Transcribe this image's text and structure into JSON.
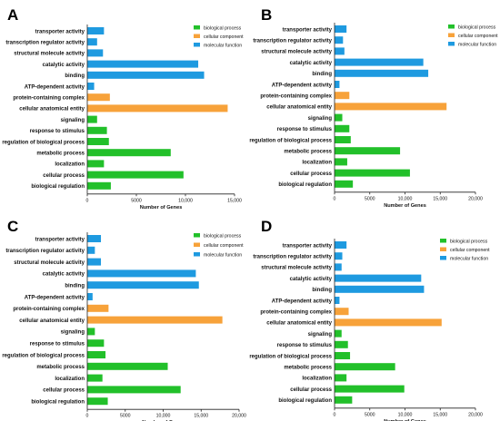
{
  "colors": {
    "biological process": "#22c02a",
    "cellular component": "#f7a23a",
    "molecular function": "#1e9ae0"
  },
  "legend_labels": [
    "biological process",
    "cellular component",
    "molecular function"
  ],
  "chart_data": [
    {
      "type": "bar",
      "orientation": "horizontal",
      "panel": "A",
      "xlabel": "Number of Genes",
      "xlim": [
        0,
        15000
      ],
      "xticks": [
        "0",
        "5000",
        "10,000",
        "15,000"
      ],
      "xtick_values": [
        0,
        5000,
        10000,
        15000
      ],
      "legend": "top-right",
      "categories": [
        "transporter activity",
        "transcription regulator activity",
        "structural molecule activity",
        "catalytic activity",
        "binding",
        "ATP-dependent activity",
        "protein-containing complex",
        "cellular anatomical entity",
        "signaling",
        "response to stimulus",
        "regulation of biological process",
        "metabolic process",
        "localization",
        "cellular process",
        "biological regulation"
      ],
      "groups": [
        "molecular function",
        "molecular function",
        "molecular function",
        "molecular function",
        "molecular function",
        "molecular function",
        "cellular component",
        "cellular component",
        "biological process",
        "biological process",
        "biological process",
        "biological process",
        "biological process",
        "biological process",
        "biological process"
      ],
      "values": [
        1700,
        1000,
        1600,
        11300,
        11900,
        700,
        2300,
        14300,
        1000,
        2000,
        2200,
        8500,
        1700,
        9800,
        2400
      ]
    },
    {
      "type": "bar",
      "orientation": "horizontal",
      "panel": "B",
      "xlabel": "Number of Genes",
      "xlim": [
        0,
        20000
      ],
      "xticks": [
        "0",
        "5000",
        "10,000",
        "15,000",
        "20,000"
      ],
      "xtick_values": [
        0,
        5000,
        10000,
        15000,
        20000
      ],
      "legend": "top-right",
      "categories": [
        "transporter activity",
        "transcription regulator activity",
        "structural molecule activity",
        "catalytic activity",
        "binding",
        "ATP-dependent activity",
        "protein-containing complex",
        "cellular anatomical entity",
        "signaling",
        "response to stimulus",
        "regulation of biological process",
        "metabolic process",
        "localization",
        "cellular process",
        "biological regulation"
      ],
      "groups": [
        "molecular function",
        "molecular function",
        "molecular function",
        "molecular function",
        "molecular function",
        "molecular function",
        "cellular component",
        "cellular component",
        "biological process",
        "biological process",
        "biological process",
        "biological process",
        "biological process",
        "biological process",
        "biological process"
      ],
      "values": [
        1700,
        1200,
        1400,
        12600,
        13300,
        700,
        2100,
        15900,
        1100,
        2100,
        2300,
        9300,
        1800,
        10700,
        2600
      ]
    },
    {
      "type": "bar",
      "orientation": "horizontal",
      "panel": "C",
      "xlabel": "Number of Genes",
      "xlim": [
        0,
        20000
      ],
      "xticks": [
        "0",
        "5000",
        "10,000",
        "15,000",
        "20,000"
      ],
      "xtick_values": [
        0,
        5000,
        10000,
        15000,
        20000
      ],
      "legend": "top-right",
      "categories": [
        "transporter activity",
        "transcription regulator activity",
        "structural molecule activity",
        "catalytic activity",
        "binding",
        "ATP-dependent activity",
        "protein-containing complex",
        "cellular anatomical entity",
        "signaling",
        "response to stimulus",
        "regulation of biological process",
        "metabolic process",
        "localization",
        "cellular process",
        "biological regulation"
      ],
      "groups": [
        "molecular function",
        "molecular function",
        "molecular function",
        "molecular function",
        "molecular function",
        "molecular function",
        "cellular component",
        "cellular component",
        "biological process",
        "biological process",
        "biological process",
        "biological process",
        "biological process",
        "biological process",
        "biological process"
      ],
      "values": [
        1800,
        1000,
        1800,
        14300,
        14700,
        700,
        2800,
        17800,
        1000,
        2200,
        2400,
        10600,
        2000,
        12300,
        2700
      ]
    },
    {
      "type": "bar",
      "orientation": "horizontal",
      "panel": "D",
      "xlabel": "Number of Genes",
      "xlim": [
        0,
        20000
      ],
      "xticks": [
        "0",
        "5000",
        "10,000",
        "15,000",
        "20,000"
      ],
      "xtick_values": [
        0,
        5000,
        10000,
        15000,
        20000
      ],
      "legend": "top-right",
      "categories": [
        "transporter activity",
        "transcription regulator activity",
        "structural molecule activity",
        "catalytic activity",
        "binding",
        "ATP-dependent activity",
        "protein-containing complex",
        "cellular anatomical entity",
        "signaling",
        "response to stimulus",
        "regulation of biological process",
        "metabolic process",
        "localization",
        "cellular process",
        "biological regulation"
      ],
      "groups": [
        "molecular function",
        "molecular function",
        "molecular function",
        "molecular function",
        "molecular function",
        "molecular function",
        "cellular component",
        "cellular component",
        "biological process",
        "biological process",
        "biological process",
        "biological process",
        "biological process",
        "biological process",
        "biological process"
      ],
      "values": [
        1700,
        1100,
        1000,
        12300,
        12700,
        700,
        2000,
        15200,
        1000,
        1900,
        2200,
        8600,
        1700,
        9900,
        2500
      ]
    }
  ]
}
